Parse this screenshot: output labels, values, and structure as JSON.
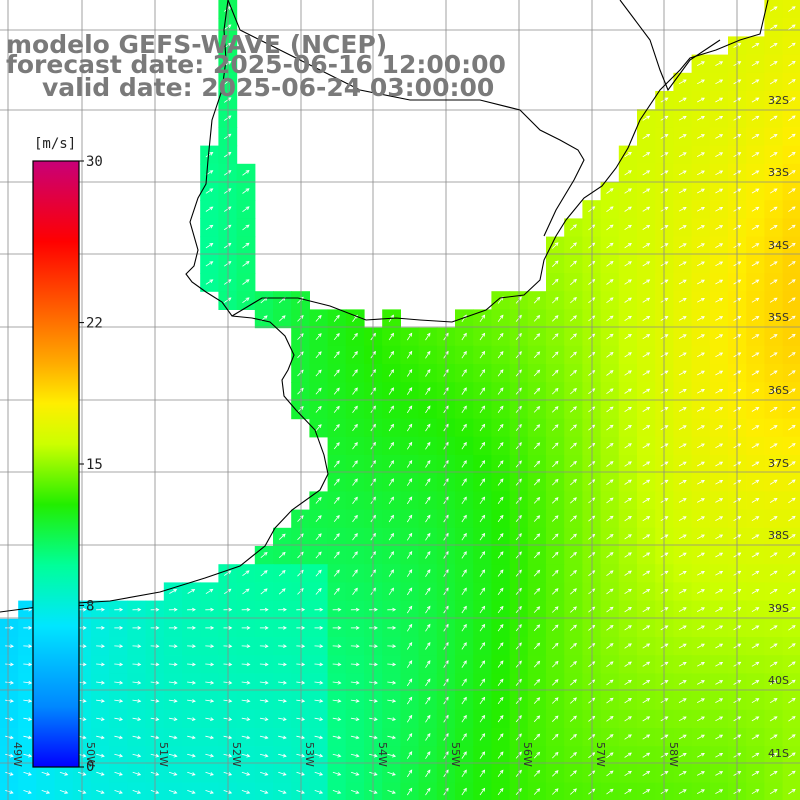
{
  "title": {
    "line1": "modelo GEFS-WAVE (NCEP)",
    "line2": "forecast date: 2025-06-16 12:00:00",
    "line3": "valid date: 2025-06-24 03:00:00"
  },
  "colorbar": {
    "unit_label": "[m/s]",
    "ticks": [
      "30",
      "22",
      "15",
      "8",
      "0"
    ],
    "tick_values": [
      30,
      22,
      15,
      8,
      0
    ],
    "stops": [
      {
        "v": 0,
        "color": "#0000ff"
      },
      {
        "v": 3,
        "color": "#0088ff"
      },
      {
        "v": 7,
        "color": "#00e6ff"
      },
      {
        "v": 10,
        "color": "#00ff99"
      },
      {
        "v": 13,
        "color": "#22ee00"
      },
      {
        "v": 16,
        "color": "#ccff00"
      },
      {
        "v": 18,
        "color": "#ffee00"
      },
      {
        "v": 20,
        "color": "#ffaa00"
      },
      {
        "v": 23,
        "color": "#ff5500"
      },
      {
        "v": 26,
        "color": "#ff0000"
      },
      {
        "v": 30,
        "color": "#c80078"
      }
    ]
  },
  "map": {
    "lat_labels": [
      "32S",
      "33S",
      "34S",
      "35S",
      "36S",
      "37S",
      "38S",
      "39S",
      "40S",
      "41S"
    ],
    "lon_labels": [
      "58W",
      "57W",
      "56W",
      "55W",
      "54W",
      "53W",
      "52W",
      "51W",
      "50W",
      "49W"
    ],
    "land_color": "#ffffff",
    "coast_color": "#000000",
    "grid_color": "#8a8a8a",
    "arrow_color": "#ffffff"
  }
}
